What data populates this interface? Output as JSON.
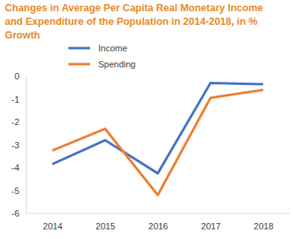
{
  "chart_data": {
    "type": "line",
    "title": "Changes in Average Per Capita Real Monetary Income and Expenditure of the Population in 2014-2018, in % Growth",
    "categories": [
      "2014",
      "2015",
      "2016",
      "2017",
      "2018"
    ],
    "series": [
      {
        "name": "Income",
        "color": "#4472c4",
        "values": [
          -3.85,
          -2.8,
          -4.25,
          -0.3,
          -0.35
        ]
      },
      {
        "name": "Spending",
        "color": "#ed7d31",
        "values": [
          -3.25,
          -2.3,
          -5.2,
          -0.95,
          -0.6
        ]
      }
    ],
    "ylim": [
      -6,
      0
    ],
    "yticks": [
      -6,
      -5,
      -4,
      -3,
      -2,
      -1,
      0
    ],
    "grid": false,
    "legend": "top"
  }
}
